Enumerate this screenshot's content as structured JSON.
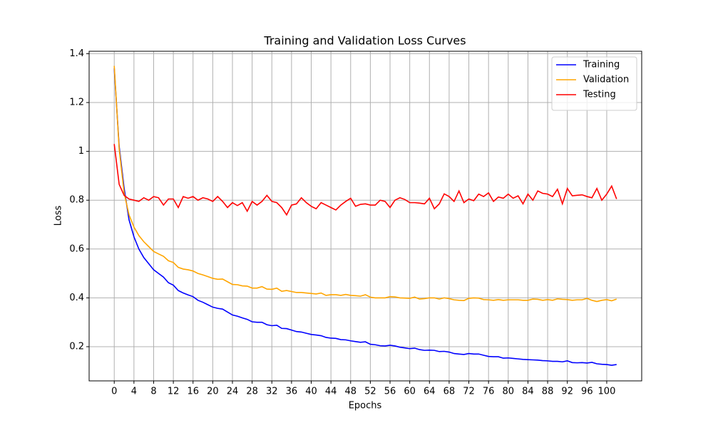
{
  "chart_data": {
    "type": "line",
    "title": "Training and Validation Loss Curves",
    "x_label": "Epochs",
    "y_label": "Loss",
    "x": [
      0,
      1,
      2,
      3,
      4,
      5,
      6,
      7,
      8,
      9,
      10,
      11,
      12,
      13,
      14,
      15,
      16,
      17,
      18,
      19,
      20,
      21,
      22,
      23,
      24,
      25,
      26,
      27,
      28,
      29,
      30,
      31,
      32,
      33,
      34,
      35,
      36,
      37,
      38,
      39,
      40,
      41,
      42,
      43,
      44,
      45,
      46,
      47,
      48,
      49,
      50,
      51,
      52,
      53,
      54,
      55,
      56,
      57,
      58,
      59,
      60,
      61,
      62,
      63,
      64,
      65,
      66,
      67,
      68,
      69,
      70,
      71,
      72,
      73,
      74,
      75,
      76,
      77,
      78,
      79,
      80,
      81,
      82,
      83,
      84,
      85,
      86,
      87,
      88,
      89,
      90,
      91,
      92,
      93,
      94,
      95,
      96,
      97,
      98,
      99,
      100,
      101,
      102
    ],
    "series": [
      {
        "name": "Training",
        "color": "#0000ff",
        "values": [
          1.34,
          1.02,
          0.85,
          0.72,
          0.65,
          0.6,
          0.565,
          0.54,
          0.515,
          0.5,
          0.485,
          0.462,
          0.452,
          0.43,
          0.42,
          0.412,
          0.405,
          0.39,
          0.382,
          0.372,
          0.362,
          0.357,
          0.354,
          0.342,
          0.33,
          0.325,
          0.318,
          0.312,
          0.302,
          0.3,
          0.3,
          0.29,
          0.286,
          0.288,
          0.275,
          0.274,
          0.268,
          0.262,
          0.26,
          0.255,
          0.25,
          0.248,
          0.245,
          0.238,
          0.235,
          0.234,
          0.229,
          0.228,
          0.224,
          0.221,
          0.218,
          0.22,
          0.21,
          0.208,
          0.204,
          0.203,
          0.206,
          0.203,
          0.198,
          0.195,
          0.192,
          0.194,
          0.188,
          0.185,
          0.186,
          0.185,
          0.18,
          0.181,
          0.178,
          0.172,
          0.17,
          0.168,
          0.172,
          0.17,
          0.17,
          0.165,
          0.16,
          0.159,
          0.159,
          0.153,
          0.154,
          0.152,
          0.15,
          0.148,
          0.147,
          0.146,
          0.145,
          0.143,
          0.142,
          0.14,
          0.14,
          0.138,
          0.142,
          0.135,
          0.134,
          0.135,
          0.133,
          0.136,
          0.13,
          0.128,
          0.127,
          0.124,
          0.127
        ]
      },
      {
        "name": "Validation",
        "color": "#ffa500",
        "values": [
          1.35,
          1.01,
          0.83,
          0.74,
          0.69,
          0.655,
          0.63,
          0.61,
          0.59,
          0.58,
          0.57,
          0.552,
          0.545,
          0.525,
          0.518,
          0.515,
          0.51,
          0.5,
          0.494,
          0.487,
          0.48,
          0.476,
          0.477,
          0.466,
          0.455,
          0.454,
          0.449,
          0.448,
          0.44,
          0.44,
          0.446,
          0.436,
          0.435,
          0.44,
          0.427,
          0.43,
          0.426,
          0.422,
          0.422,
          0.42,
          0.418,
          0.416,
          0.42,
          0.41,
          0.413,
          0.413,
          0.41,
          0.414,
          0.41,
          0.409,
          0.407,
          0.413,
          0.403,
          0.4,
          0.4,
          0.4,
          0.405,
          0.404,
          0.4,
          0.399,
          0.398,
          0.403,
          0.395,
          0.397,
          0.4,
          0.4,
          0.395,
          0.4,
          0.397,
          0.392,
          0.39,
          0.389,
          0.398,
          0.4,
          0.399,
          0.393,
          0.392,
          0.39,
          0.393,
          0.39,
          0.392,
          0.392,
          0.392,
          0.39,
          0.39,
          0.395,
          0.394,
          0.39,
          0.393,
          0.39,
          0.396,
          0.394,
          0.393,
          0.39,
          0.392,
          0.392,
          0.398,
          0.39,
          0.385,
          0.39,
          0.393,
          0.388,
          0.395
        ]
      },
      {
        "name": "Testing",
        "color": "#ff0000",
        "values": [
          1.03,
          0.865,
          0.82,
          0.805,
          0.8,
          0.795,
          0.81,
          0.8,
          0.815,
          0.81,
          0.78,
          0.805,
          0.805,
          0.77,
          0.815,
          0.808,
          0.815,
          0.8,
          0.81,
          0.805,
          0.795,
          0.815,
          0.795,
          0.77,
          0.79,
          0.778,
          0.79,
          0.755,
          0.795,
          0.78,
          0.795,
          0.82,
          0.795,
          0.79,
          0.77,
          0.74,
          0.78,
          0.785,
          0.81,
          0.79,
          0.775,
          0.765,
          0.79,
          0.78,
          0.77,
          0.76,
          0.78,
          0.795,
          0.808,
          0.775,
          0.783,
          0.785,
          0.78,
          0.78,
          0.8,
          0.795,
          0.77,
          0.8,
          0.81,
          0.803,
          0.79,
          0.79,
          0.788,
          0.785,
          0.808,
          0.765,
          0.785,
          0.826,
          0.815,
          0.795,
          0.838,
          0.79,
          0.805,
          0.798,
          0.825,
          0.815,
          0.83,
          0.795,
          0.813,
          0.808,
          0.825,
          0.808,
          0.818,
          0.785,
          0.825,
          0.8,
          0.838,
          0.828,
          0.825,
          0.815,
          0.845,
          0.785,
          0.848,
          0.818,
          0.82,
          0.822,
          0.815,
          0.81,
          0.848,
          0.8,
          0.825,
          0.858,
          0.805
        ]
      }
    ],
    "xlim": [
      -5.1,
      107.1
    ],
    "ylim": [
      0.06,
      1.41
    ],
    "xticks": [
      0,
      4,
      8,
      12,
      16,
      20,
      24,
      28,
      32,
      36,
      40,
      44,
      48,
      52,
      56,
      60,
      64,
      68,
      72,
      76,
      80,
      84,
      88,
      92,
      96,
      100
    ],
    "yticks": [
      0.2,
      0.4,
      0.6,
      0.8,
      1.0,
      1.2,
      1.4
    ],
    "grid": true,
    "legend": "upper right"
  }
}
